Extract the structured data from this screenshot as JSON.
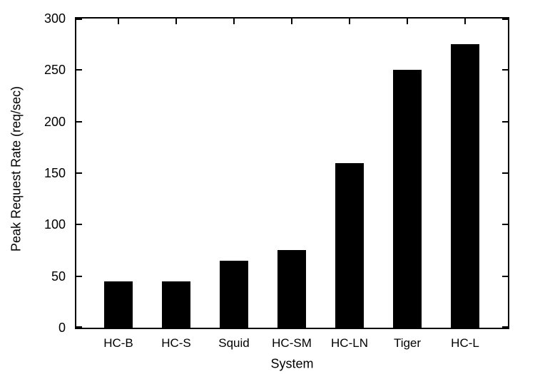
{
  "chart_data": {
    "type": "bar",
    "categories": [
      "HC-B",
      "HC-S",
      "Squid",
      "HC-SM",
      "HC-LN",
      "Tiger",
      "HC-L"
    ],
    "values": [
      45,
      45,
      65,
      75,
      160,
      250,
      275
    ],
    "title": "",
    "xlabel": "System",
    "ylabel": "Peak Request Rate (req/sec)",
    "ylim": [
      0,
      300
    ],
    "yticks": [
      0,
      50,
      100,
      150,
      200,
      250,
      300
    ],
    "grid": false,
    "legend": "none",
    "bar_color": "#000000",
    "background_color": "#ffffff",
    "border": "full-box-with-inward-ticks"
  }
}
